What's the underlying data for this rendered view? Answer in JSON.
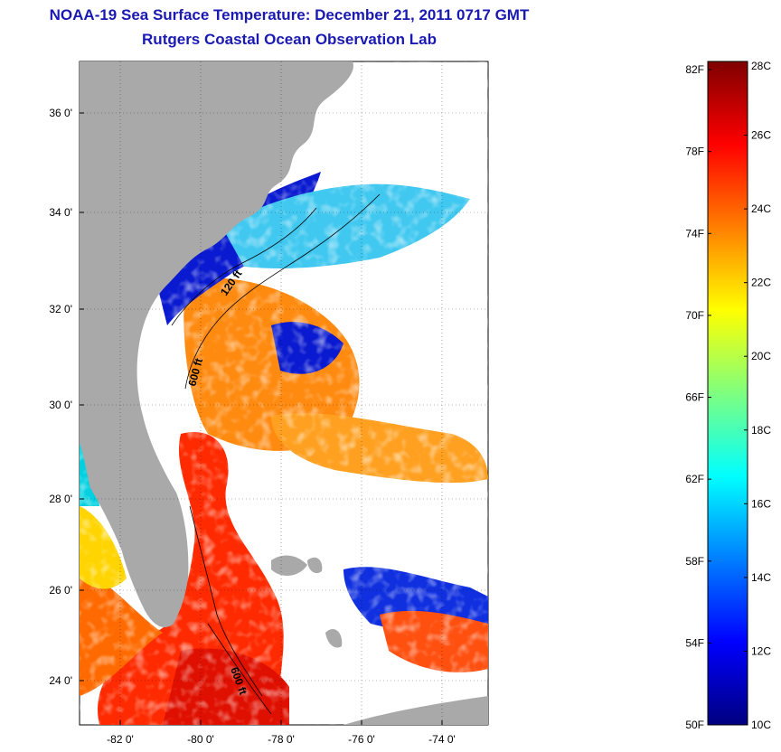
{
  "title": "NOAA-19 Sea Surface Temperature:  December 21, 2011 0717 GMT",
  "subtitle": "Rutgers Coastal Ocean Observation Lab",
  "map": {
    "lon_range": [
      -83,
      -73
    ],
    "lat_range": [
      23,
      37
    ],
    "lat_ticks": [
      {
        "value": 24,
        "label": "24 0'"
      },
      {
        "value": 26,
        "label": "26 0'"
      },
      {
        "value": 28,
        "label": "28 0'"
      },
      {
        "value": 30,
        "label": "30 0'"
      },
      {
        "value": 32,
        "label": "32 0'"
      },
      {
        "value": 34,
        "label": "34 0'"
      },
      {
        "value": 36,
        "label": "36 0'"
      }
    ],
    "lon_ticks": [
      {
        "value": -82,
        "label": "-82 0'"
      },
      {
        "value": -80,
        "label": "-80 0'"
      },
      {
        "value": -78,
        "label": "-78 0'"
      },
      {
        "value": -76,
        "label": "-76 0'"
      },
      {
        "value": -74,
        "label": "-74 0'"
      }
    ],
    "contour_labels": [
      "120 ft",
      "600 ft",
      "600 ft"
    ],
    "land_color": "#a9a9a9",
    "cloud_color": "#ffffff"
  },
  "colorbar": {
    "celsius_labels": [
      "28C",
      "26C",
      "24C",
      "22C",
      "20C",
      "18C",
      "16C",
      "14C",
      "12C",
      "10C"
    ],
    "fahrenheit_labels": [
      "82F",
      "78F",
      "74F",
      "70F",
      "66F",
      "62F",
      "58F",
      "54F",
      "50F"
    ],
    "celsius_range": [
      10,
      28
    ],
    "colormap": [
      "#00007f",
      "#0000ff",
      "#007fff",
      "#00ffff",
      "#7fff7f",
      "#ffff00",
      "#ff7f00",
      "#ff0000",
      "#7f0000"
    ]
  }
}
